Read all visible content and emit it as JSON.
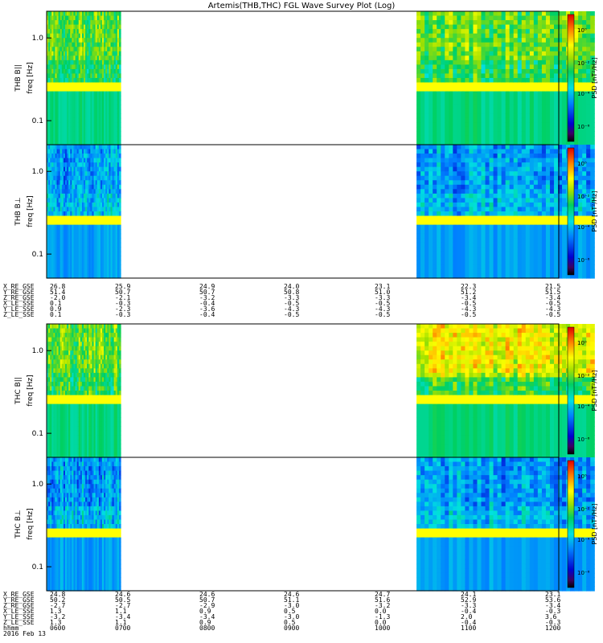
{
  "chart_data": {
    "type": "heatmap",
    "title": "Artemis(THB,THC) FGL Wave Survey Plot (Log)",
    "panels": [
      {
        "probe": "THB",
        "component": "B||",
        "ylabel": "THB B||",
        "ylabel2": "freq [Hz]",
        "yticks": [
          "1.0",
          "0.1"
        ],
        "zlabel": "PSD [nT²/Hz]",
        "zticks": [
          "10⁰",
          "10⁻²",
          "10⁻⁴",
          "10⁻⁶"
        ]
      },
      {
        "probe": "THB",
        "component": "B⊥",
        "ylabel": "THB B⊥",
        "ylabel2": "freq [Hz]",
        "yticks": [
          "1.0",
          "0.1"
        ],
        "zlabel": "PSD [nT²/Hz]",
        "zticks": [
          "10⁰",
          "10⁻²",
          "10⁻⁴",
          "10⁻⁶"
        ]
      },
      {
        "probe": "THC",
        "component": "B||",
        "ylabel": "THC B||",
        "ylabel2": "freq [Hz]",
        "yticks": [
          "1.0",
          "0.1"
        ],
        "zlabel": "PSD [nT²/Hz]",
        "zticks": [
          "10⁰",
          "10⁻²",
          "10⁻⁴",
          "10⁻⁶"
        ]
      },
      {
        "probe": "THC",
        "component": "B⊥",
        "ylabel": "THC B⊥",
        "ylabel2": "freq [Hz]",
        "yticks": [
          "1.0",
          "0.1"
        ],
        "zlabel": "PSD [nT²/Hz]",
        "zticks": [
          "10⁰",
          "10⁻²",
          "10⁻⁴",
          "10⁻⁶"
        ]
      }
    ],
    "data_intervals_hhmm": [
      [
        "0600",
        "0652"
      ],
      [
        "1020",
        "1225"
      ]
    ],
    "xrange_hhmm": [
      "0600",
      "1200"
    ],
    "thb_ephemeris": {
      "labels": [
        "X_RE_GSE",
        "Y_RE_GSE",
        "Z_RE_GSE",
        "X_LE_SSE",
        "Y_LE_SSE",
        "Z_LE_SSE"
      ],
      "columns": [
        [
          "26.8",
          "51.4",
          "-2.0",
          "0.1",
          "0.9",
          "0.1"
        ],
        [
          "25.9",
          "50.7",
          "-2.1",
          "-0.3",
          "-2.3",
          "-0.3"
        ],
        [
          "24.9",
          "50.7",
          "-3.2",
          "-0.4",
          "-3.6",
          "-0.4"
        ],
        [
          "24.0",
          "50.8",
          "-3.3",
          "-0.5",
          "-4.3",
          "-0.5"
        ],
        [
          "23.1",
          "51.0",
          "-3.3",
          "-0.5",
          "-4.3",
          "-0.5"
        ],
        [
          "22.3",
          "51.2",
          "-3.4",
          "-0.5",
          "-4.3",
          "-0.5"
        ],
        [
          "21.5",
          "51.5",
          "-3.4",
          "-0.5",
          "-4.3",
          "-0.5"
        ]
      ]
    },
    "thc_ephemeris": {
      "labels": [
        "X_RE_GSE",
        "Y_RE_GSE",
        "Z_RE_GSE",
        "X_LE_SSE",
        "Y_LE_SSE",
        "Z_LE_SSE",
        "hhmm",
        "2016 Feb 13"
      ],
      "columns": [
        [
          "24.8",
          "50.2",
          "-2.7",
          "1.3",
          "-3.2",
          "1.3",
          "0600"
        ],
        [
          "24.6",
          "50.5",
          "-2.7",
          "1.1",
          "-3.4",
          "1.1",
          "0700"
        ],
        [
          "24.6",
          "50.7",
          "-2.9",
          "0.9",
          "-3.4",
          "0.9",
          "0800"
        ],
        [
          "24.6",
          "51.1",
          "-3.0",
          "0.5",
          "-3.0",
          "0.5",
          "0900"
        ],
        [
          "24.7",
          "51.6",
          "-3.2",
          "0.0",
          "-1.3",
          "0.0",
          "1000"
        ],
        [
          "24.1",
          "52.9",
          "-3.3",
          "-0.4",
          "2.0",
          "-0.4",
          "1100"
        ],
        [
          "23.1",
          "53.6",
          "-3.4",
          "-0.3",
          "3.6",
          "-0.3",
          "1200"
        ]
      ]
    }
  }
}
